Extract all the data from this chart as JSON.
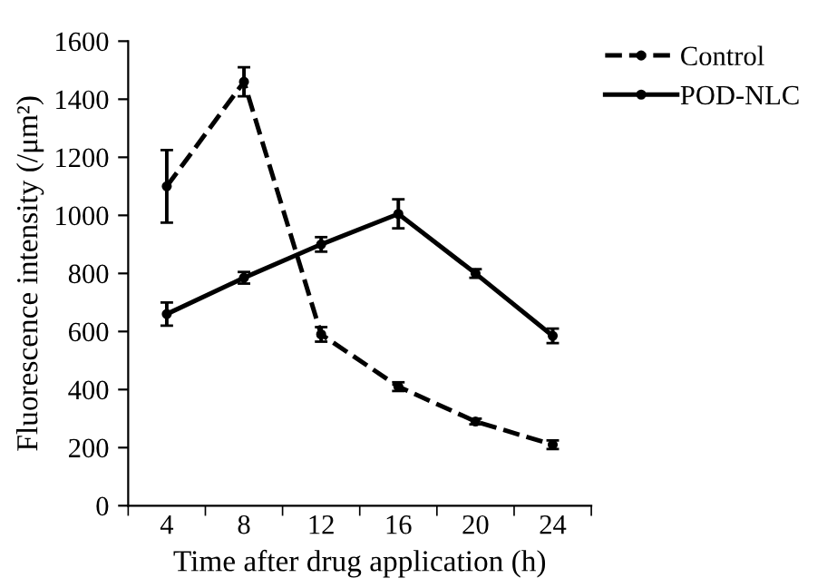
{
  "chart_data": {
    "type": "line",
    "xlabel": "Time after drug application (h)",
    "ylabel": "Fluorescence intensity (/μm²)",
    "categories": [
      "4",
      "8",
      "12",
      "16",
      "20",
      "24"
    ],
    "series": [
      {
        "name": "Control",
        "color": "#000000",
        "line_style": "dashed",
        "values": [
          1100,
          1460,
          590,
          410,
          290,
          210
        ],
        "errors": [
          125,
          50,
          25,
          15,
          10,
          15
        ]
      },
      {
        "name": "POD-NLC",
        "color": "#000000",
        "line_style": "solid",
        "values": [
          660,
          785,
          900,
          1005,
          800,
          585
        ],
        "errors": [
          40,
          20,
          25,
          50,
          15,
          25
        ]
      }
    ],
    "ylim": [
      0,
      1600
    ],
    "yticks": [
      0,
      200,
      400,
      600,
      800,
      1000,
      1200,
      1400,
      1600
    ],
    "marker": "circle",
    "legend": "top right",
    "grid": false
  }
}
